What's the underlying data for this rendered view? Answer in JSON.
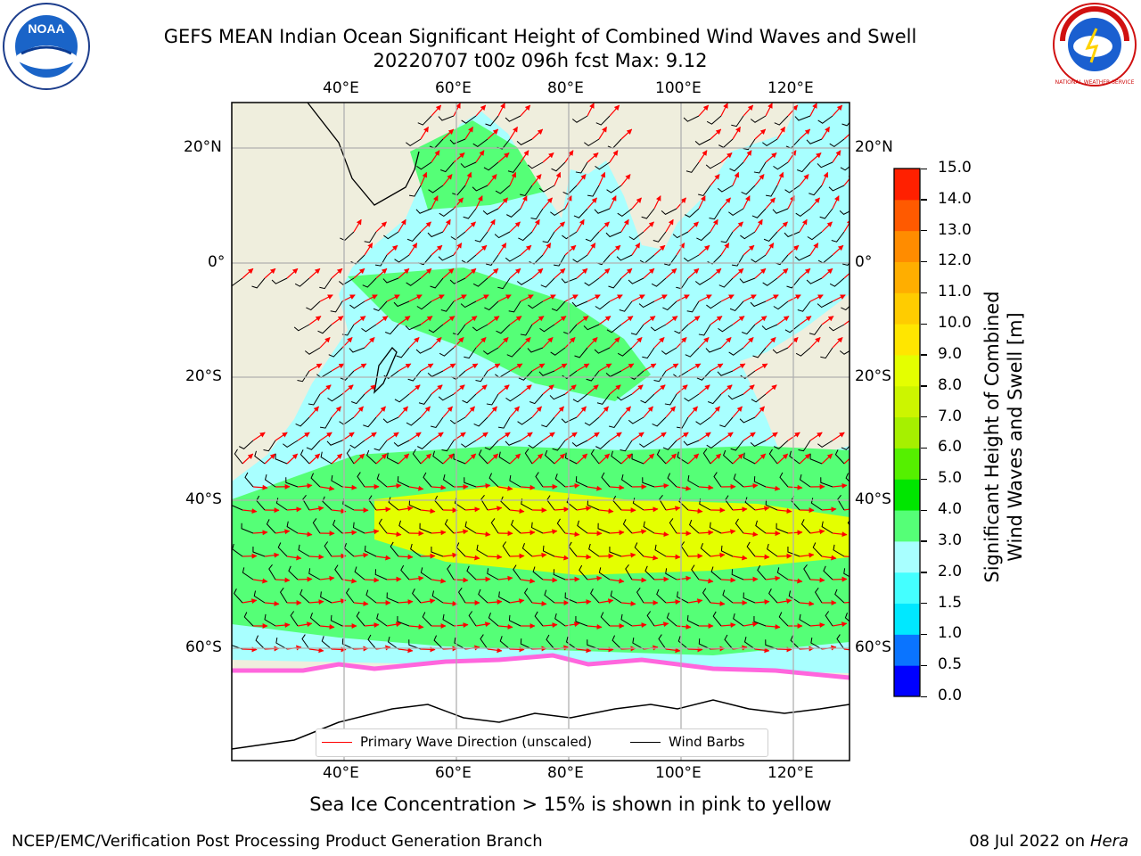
{
  "title": {
    "line1": "GEFS MEAN Indian Ocean Significant Height of Combined Wind Waves and Swell",
    "line2": "20220707 t00z 096h fcst   Max: 9.12"
  },
  "map": {
    "lon_labels": [
      "40°E",
      "60°E",
      "80°E",
      "100°E",
      "120°E"
    ],
    "lat_labels": [
      "20°N",
      "0°",
      "20°S",
      "40°S",
      "60°S"
    ],
    "colors": {
      "land": "#efeedd",
      "ice_region": "#ffffff",
      "field_low": "#a8ffff",
      "field_mid": "#55ff77",
      "field_high": "#e4ff00",
      "wave_arrow": "#ff0000",
      "wind_barb": "#000000"
    }
  },
  "legend": {
    "wave_direction": "Primary Wave Direction (unscaled)",
    "wind_barbs": "Wind Barbs"
  },
  "colorbar": {
    "label_line1": "Significant Height of Combined",
    "label_line2": "Wind Waves and Swell [m]",
    "ticks": [
      "0.0",
      "0.5",
      "1.0",
      "1.5",
      "2.0",
      "3.0",
      "4.0",
      "5.0",
      "6.0",
      "7.0",
      "8.0",
      "9.0",
      "10.0",
      "11.0",
      "12.0",
      "13.0",
      "14.0",
      "15.0"
    ],
    "colors": [
      "#0000ff",
      "#0a74ff",
      "#00e8ff",
      "#44ffff",
      "#a8ffff",
      "#55ff77",
      "#00e600",
      "#55f000",
      "#a6f000",
      "#ccf500",
      "#e4ff00",
      "#ffe600",
      "#ffcc00",
      "#ffae00",
      "#ff8c00",
      "#ff5a00",
      "#ff2000"
    ]
  },
  "caption": "Sea Ice Concentration > 15% is shown in pink to yellow",
  "footer": {
    "left": "NCEP/EMC/Verification Post Processing Product Generation Branch",
    "date": "08 Jul 2022 on ",
    "host": "Hera"
  },
  "logos": {
    "noaa": "NOAA",
    "nws": "NATIONAL WEATHER SERVICE"
  }
}
